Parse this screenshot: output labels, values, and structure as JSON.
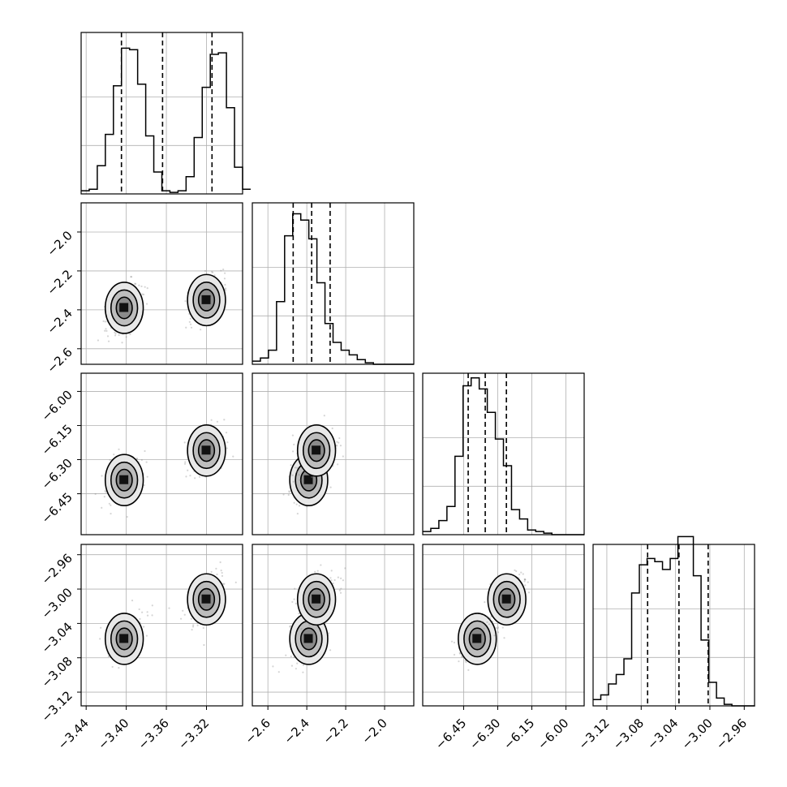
{
  "chart_data": {
    "type": "corner",
    "parameters": [
      {
        "range": [
          -3.445,
          -3.284
        ],
        "ticks": [
          -3.44,
          -3.4,
          -3.36,
          -3.32
        ],
        "tick_labels": [
          "−3.44",
          "−3.40",
          "−3.36",
          "−3.32"
        ],
        "quantiles": [
          -3.4048,
          -3.3638,
          -3.3145
        ],
        "hist_edges_start": -3.445,
        "hist_bin_width": 0.00805,
        "hist_counts": [
          2,
          3,
          18,
          38,
          69,
          93,
          92,
          70,
          37,
          14,
          2,
          1,
          2,
          11,
          36,
          68,
          89,
          90,
          55,
          17,
          3
        ]
      },
      {
        "range": [
          -2.68,
          -1.85
        ],
        "ticks": [
          -2.6,
          -2.4,
          -2.2,
          -2.0
        ],
        "tick_labels": [
          "−2.6",
          "−2.4",
          "−2.2",
          "−2.0"
        ],
        "quantiles": [
          -2.47,
          -2.375,
          -2.28
        ],
        "hist_edges_start": -2.68,
        "hist_bin_width": 0.0415,
        "hist_counts": [
          2,
          4,
          9,
          40,
          82,
          96,
          92,
          80,
          52,
          26,
          14,
          9,
          6,
          3,
          1,
          0,
          0,
          0,
          0,
          0
        ]
      },
      {
        "range": [
          -6.63,
          -5.92
        ],
        "ticks": [
          -6.45,
          -6.3,
          -6.15,
          -6.0
        ],
        "tick_labels": [
          "−6.45",
          "−6.30",
          "−6.15",
          "−6.00"
        ],
        "quantiles": [
          -6.43,
          -6.355,
          -6.262
        ],
        "hist_edges_start": -6.63,
        "hist_bin_width": 0.0355,
        "hist_counts": [
          2,
          4,
          9,
          18,
          50,
          95,
          100,
          93,
          78,
          61,
          44,
          16,
          10,
          3,
          2,
          1,
          0,
          0,
          0,
          0
        ]
      },
      {
        "range": [
          -3.136,
          -2.948
        ],
        "ticks": [
          -3.12,
          -3.08,
          -3.04,
          -3.0,
          -2.96
        ],
        "tick_labels": [
          "−3.12",
          "−3.08",
          "−3.04",
          "−3.00",
          "−2.96"
        ],
        "quantiles": [
          -3.0725,
          -3.036,
          -3.002
        ],
        "hist_edges_start": -3.136,
        "hist_bin_width": 0.00898,
        "hist_counts": [
          4,
          7,
          14,
          20,
          30,
          72,
          90,
          94,
          92,
          87,
          94,
          108,
          108,
          83,
          42,
          15,
          5,
          1,
          0,
          0,
          0
        ]
      }
    ],
    "hist_ylim": [
      0,
      103
    ],
    "modes": [
      {
        "centers": [
          -3.402,
          -2.39,
          -6.39,
          -3.058
        ]
      },
      {
        "centers": [
          -3.32,
          -2.35,
          -6.26,
          -3.012
        ]
      }
    ],
    "contour_levels": 3,
    "grid": true,
    "quantile_lines": "dashed"
  }
}
